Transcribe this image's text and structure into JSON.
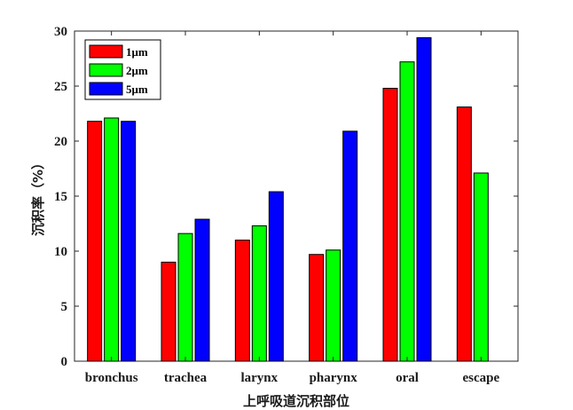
{
  "chart_data": {
    "type": "bar",
    "title": "",
    "xlabel": "上呼吸道沉积部位",
    "ylabel": "沉积率（%）",
    "ylim": [
      0,
      30
    ],
    "yticks": [
      0,
      5,
      10,
      15,
      20,
      25,
      30
    ],
    "categories": [
      "bronchus",
      "trachea",
      "larynx",
      "pharynx",
      "oral",
      "escape"
    ],
    "series": [
      {
        "name": "1μm",
        "color": "#ff0000",
        "values": [
          21.8,
          9.0,
          11.0,
          9.7,
          24.8,
          23.1
        ]
      },
      {
        "name": "2μm",
        "color": "#00ff00",
        "values": [
          22.1,
          11.6,
          12.3,
          10.1,
          27.2,
          17.1
        ]
      },
      {
        "name": "5μm",
        "color": "#0000ff",
        "values": [
          21.8,
          12.9,
          15.4,
          20.9,
          29.4,
          null
        ]
      }
    ],
    "grid": false,
    "legend_position": "top-left"
  }
}
